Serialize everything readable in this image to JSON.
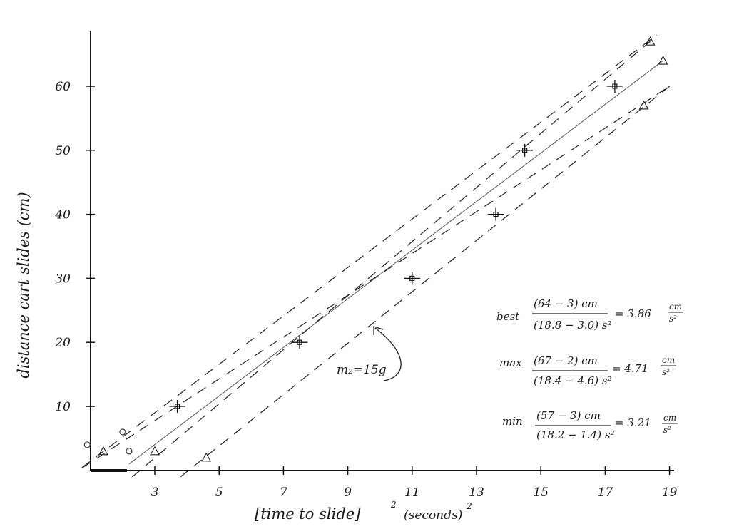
{
  "chart_data": {
    "type": "scatter",
    "xlabel_main": "[time to slide]",
    "xlabel_exp": "2",
    "xlabel_units": "(seconds)",
    "xlabel_units_exp": "2",
    "ylabel": "distance cart slides (cm)",
    "xlim": [
      0.9,
      19.2
    ],
    "ylim": [
      0,
      68
    ],
    "x_ticks": [
      3,
      5,
      7,
      9,
      11,
      13,
      15,
      17,
      19
    ],
    "y_ticks": [
      10,
      20,
      30,
      40,
      50,
      60
    ],
    "points": [
      {
        "x": 3.7,
        "y": 10
      },
      {
        "x": 7.5,
        "y": 20
      },
      {
        "x": 11.0,
        "y": 30
      },
      {
        "x": 13.6,
        "y": 40
      },
      {
        "x": 14.5,
        "y": 50
      },
      {
        "x": 17.3,
        "y": 60
      }
    ],
    "x_error": 0.25,
    "fit_lines": {
      "best": {
        "x": [
          2.2,
          18.8
        ],
        "y": [
          1,
          64
        ]
      },
      "max": {
        "x": [
          1.4,
          18.6
        ],
        "y": [
          2,
          68
        ]
      },
      "min": {
        "x": [
          1.2,
          19.0
        ],
        "y": [
          2,
          60
        ]
      }
    },
    "aux_triangles": [
      {
        "x": 1.4,
        "y": 3
      },
      {
        "x": 3.0,
        "y": 3
      },
      {
        "x": 18.4,
        "y": 67
      },
      {
        "x": 18.8,
        "y": 64
      },
      {
        "x": 4.6,
        "y": 2
      },
      {
        "x": 18.2,
        "y": 57
      }
    ],
    "aux_circles": [
      {
        "x": 0.9,
        "y": 4
      },
      {
        "x": 2.2,
        "y": 3
      },
      {
        "x": 2.0,
        "y": 6
      }
    ],
    "annotation": {
      "text": "m₂=15g",
      "x": 8.6,
      "y": 15.5
    },
    "slopes": [
      {
        "label": "best",
        "num": "(64 − 3)  cm",
        "den": "(18.8 − 3.0) s²",
        "result": "= 3.86",
        "unit_num": "cm",
        "unit_den": "s²"
      },
      {
        "label": "max",
        "num": "(67 − 2)  cm",
        "den": "(18.4 − 4.6) s²",
        "result": "= 4.71",
        "unit_num": "cm",
        "unit_den": "s²"
      },
      {
        "label": "min",
        "num": "(57 − 3)  cm",
        "den": "(18.2 − 1.4) s²",
        "result": "= 3.21",
        "unit_num": "cm",
        "unit_den": "s²"
      }
    ]
  }
}
